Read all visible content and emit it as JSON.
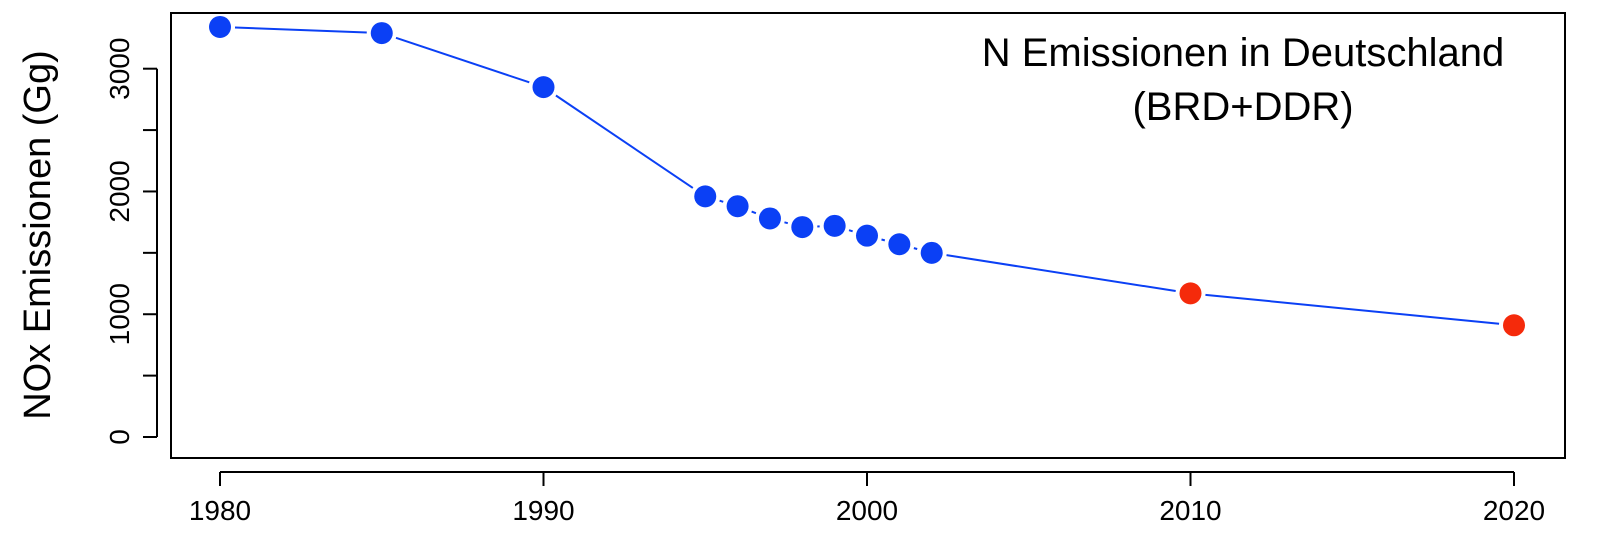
{
  "chart_data": {
    "type": "line",
    "title_lines": [
      "N Emissionen in Deutschland",
      "(BRD+DDR)"
    ],
    "xlabel": "",
    "ylabel": "NOx Emissionen (Gg)",
    "xlim": [
      1980,
      2020
    ],
    "ylim": [
      0,
      3250
    ],
    "x_ticks": [
      1980,
      1990,
      2000,
      2010,
      2020
    ],
    "y_ticks": [
      0,
      500,
      1000,
      1500,
      2000,
      2500,
      3000
    ],
    "y_tick_labels": [
      "0",
      "",
      "1000",
      "",
      "2000",
      "",
      "3000"
    ],
    "grid": false,
    "line_color": "#0b40f5",
    "series": [
      {
        "x": [
          1980,
          1985,
          1990,
          1995,
          1996,
          1997,
          1998,
          1999,
          2000,
          2001,
          2002,
          2010,
          2020
        ],
        "y": [
          3340,
          3290,
          2850,
          1960,
          1880,
          1780,
          1710,
          1720,
          1640,
          1570,
          1500,
          1170,
          910
        ],
        "marker_colors": [
          "#0b40f5",
          "#0b40f5",
          "#0b40f5",
          "#0b40f5",
          "#0b40f5",
          "#0b40f5",
          "#0b40f5",
          "#0b40f5",
          "#0b40f5",
          "#0b40f5",
          "#0b40f5",
          "#f52a0b",
          "#f52a0b"
        ]
      }
    ]
  }
}
